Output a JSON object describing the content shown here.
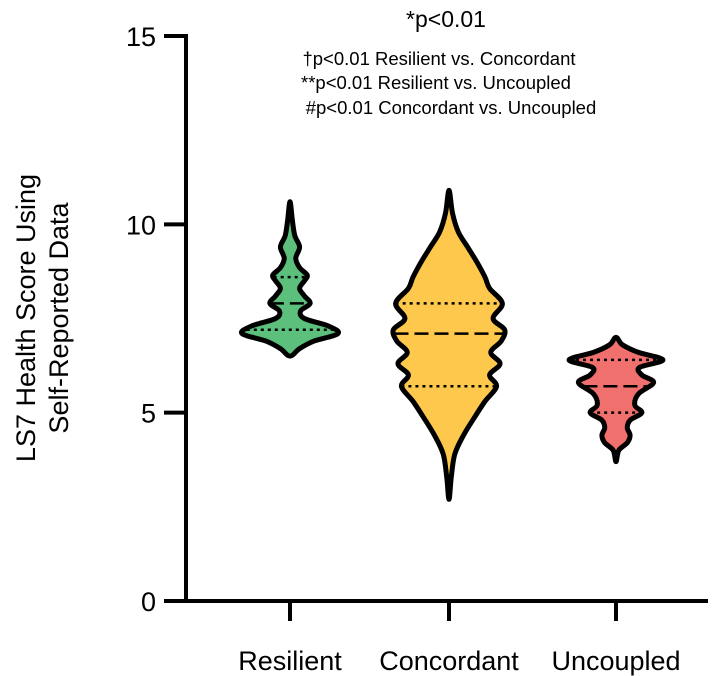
{
  "chart_data": {
    "type": "violin",
    "title": "*p<0.01",
    "annotations": [
      "†p<0.01 Resilient vs. Concordant",
      "**p<0.01 Resilient vs. Uncoupled",
      "#p<0.01 Concordant vs. Uncoupled"
    ],
    "ylabel_line1": "LS7 Health Score Using",
    "ylabel_line2": "Self-Reported Data",
    "xlabel": "",
    "ylim": [
      0,
      15
    ],
    "yticks": [
      0,
      5,
      10,
      15
    ],
    "ytick_labels": [
      "0",
      "5",
      "10",
      "15"
    ],
    "categories": [
      "Resilient",
      "Concordant",
      "Uncoupled"
    ],
    "series": [
      {
        "name": "Resilient",
        "color": "#5cbf7c",
        "min": 6.5,
        "max": 10.6,
        "median": 7.9,
        "q1": 7.2,
        "q3": 8.6,
        "density": [
          [
            6.5,
            0.0
          ],
          [
            6.7,
            0.2
          ],
          [
            6.9,
            0.5
          ],
          [
            7.1,
            1.0
          ],
          [
            7.3,
            0.8
          ],
          [
            7.5,
            0.3
          ],
          [
            7.7,
            0.22
          ],
          [
            7.9,
            0.42
          ],
          [
            8.1,
            0.3
          ],
          [
            8.3,
            0.2
          ],
          [
            8.5,
            0.3
          ],
          [
            8.65,
            0.36
          ],
          [
            8.85,
            0.2
          ],
          [
            9.1,
            0.12
          ],
          [
            9.4,
            0.2
          ],
          [
            9.7,
            0.1
          ],
          [
            10.1,
            0.05
          ],
          [
            10.6,
            0.0
          ]
        ]
      },
      {
        "name": "Concordant",
        "color": "#fec84d",
        "min": 2.7,
        "max": 10.9,
        "median": 7.1,
        "q1": 5.7,
        "q3": 7.9,
        "density": [
          [
            2.7,
            0.0
          ],
          [
            3.3,
            0.04
          ],
          [
            3.9,
            0.1
          ],
          [
            4.4,
            0.25
          ],
          [
            4.9,
            0.45
          ],
          [
            5.3,
            0.62
          ],
          [
            5.7,
            0.82
          ],
          [
            6.0,
            0.7
          ],
          [
            6.3,
            0.88
          ],
          [
            6.6,
            0.72
          ],
          [
            6.9,
            0.9
          ],
          [
            7.2,
            0.96
          ],
          [
            7.5,
            0.76
          ],
          [
            7.9,
            0.92
          ],
          [
            8.3,
            0.7
          ],
          [
            8.6,
            0.62
          ],
          [
            9.0,
            0.48
          ],
          [
            9.4,
            0.32
          ],
          [
            9.8,
            0.16
          ],
          [
            10.3,
            0.06
          ],
          [
            10.9,
            0.0
          ]
        ]
      },
      {
        "name": "Uncoupled",
        "color": "#f0706e",
        "min": 3.7,
        "max": 7.0,
        "median": 5.7,
        "q1": 5.0,
        "q3": 6.4,
        "density": [
          [
            3.7,
            0.0
          ],
          [
            4.0,
            0.06
          ],
          [
            4.2,
            0.24
          ],
          [
            4.4,
            0.3
          ],
          [
            4.6,
            0.24
          ],
          [
            4.8,
            0.3
          ],
          [
            5.0,
            0.55
          ],
          [
            5.2,
            0.4
          ],
          [
            5.5,
            0.48
          ],
          [
            5.8,
            0.8
          ],
          [
            6.0,
            0.55
          ],
          [
            6.2,
            0.5
          ],
          [
            6.4,
            1.0
          ],
          [
            6.6,
            0.48
          ],
          [
            6.8,
            0.14
          ],
          [
            7.0,
            0.0
          ]
        ]
      }
    ]
  }
}
